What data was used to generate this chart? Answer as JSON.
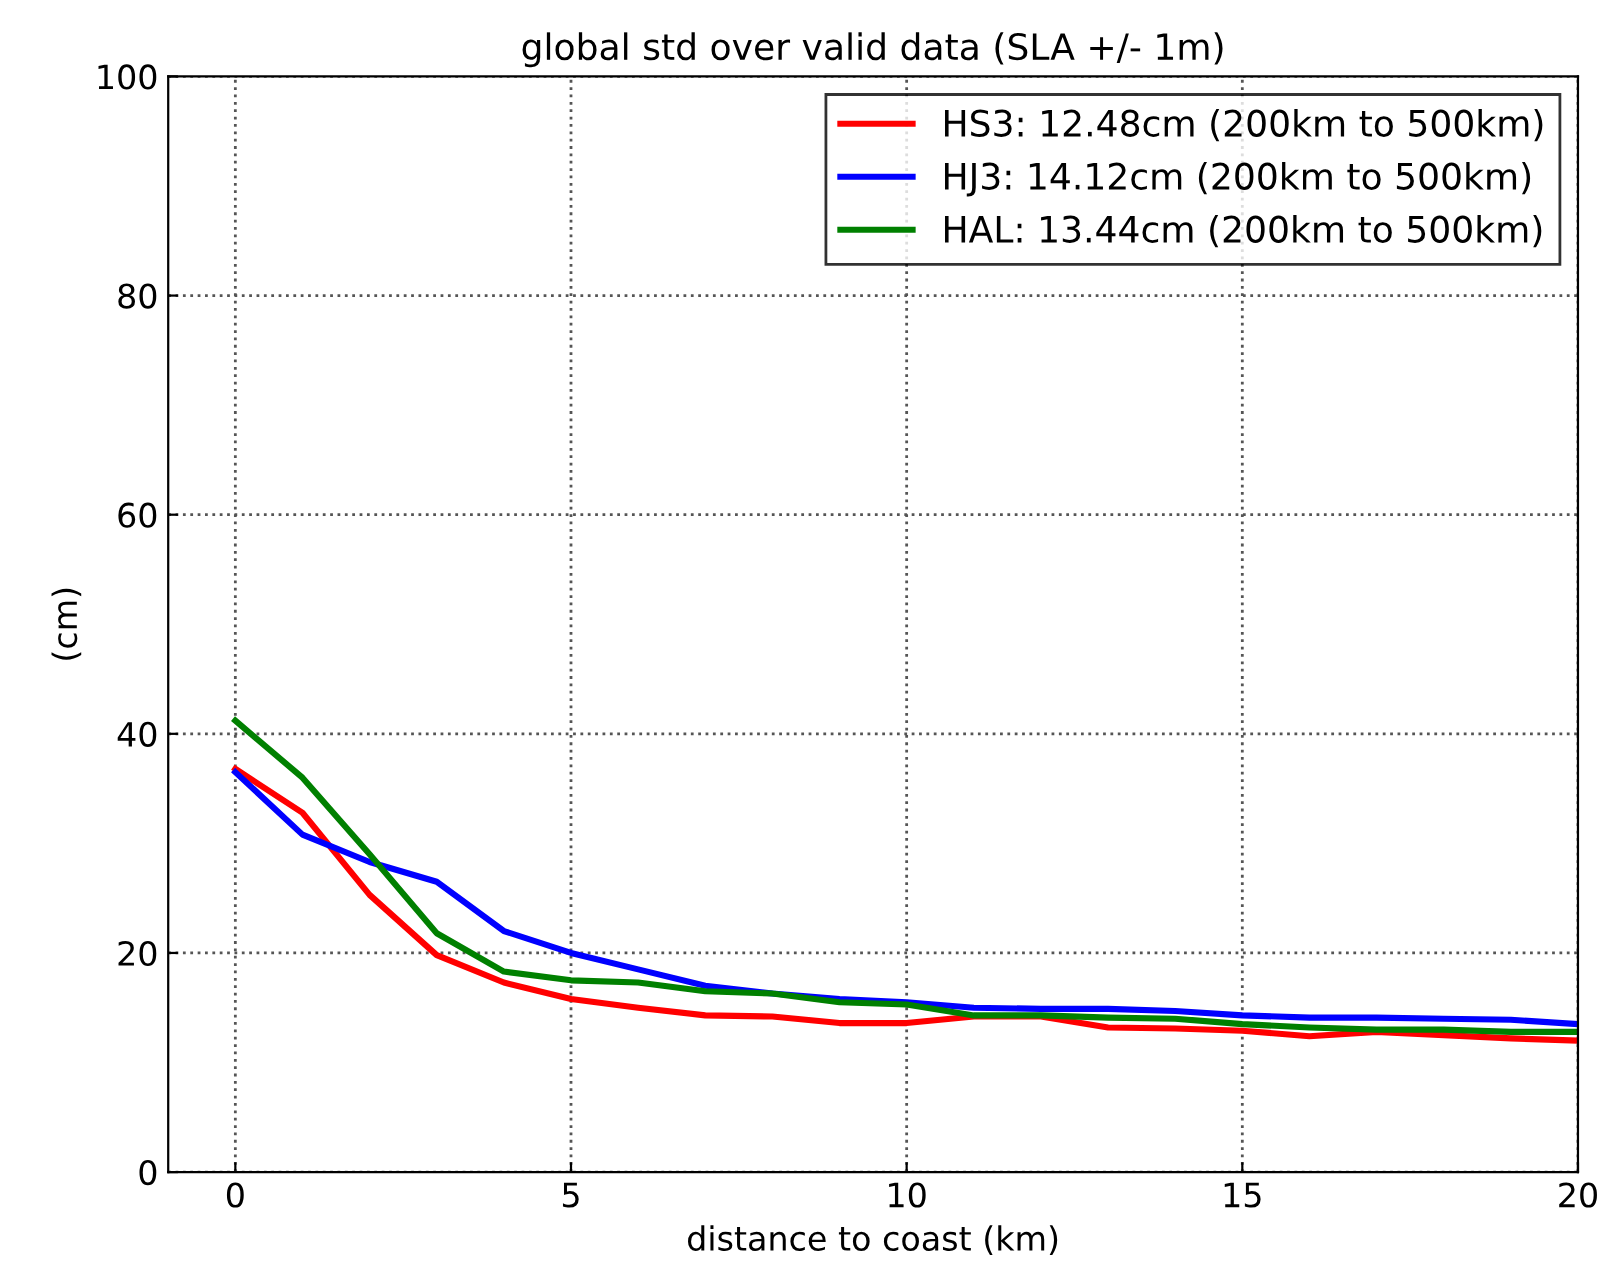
{
  "chart_data": {
    "type": "line",
    "title": "global std over valid data (SLA +/- 1m)",
    "xlabel": "distance to coast (km)",
    "ylabel": "(cm)",
    "x": [
      0,
      1,
      2,
      3,
      4,
      5,
      6,
      7,
      8,
      9,
      10,
      11,
      12,
      13,
      14,
      15,
      16,
      17,
      18,
      19,
      20
    ],
    "series": [
      {
        "name": "HS3: 12.48cm (200km to 500km)",
        "color": "#ff0000",
        "values": [
          36.8,
          32.8,
          25.3,
          19.8,
          17.3,
          15.8,
          15.0,
          14.3,
          14.2,
          13.6,
          13.6,
          14.2,
          14.2,
          13.2,
          13.1,
          12.9,
          12.4,
          12.8,
          12.5,
          12.2,
          12.0
        ]
      },
      {
        "name": "HJ3: 14.12cm (200km to 500km)",
        "color": "#0000ff",
        "values": [
          36.5,
          30.8,
          28.3,
          26.5,
          22.0,
          20.0,
          18.5,
          17.0,
          16.3,
          15.8,
          15.5,
          15.0,
          14.9,
          14.9,
          14.7,
          14.3,
          14.1,
          14.1,
          14.0,
          13.9,
          13.5
        ]
      },
      {
        "name": "HAL: 13.44cm (200km to 500km)",
        "color": "#008000",
        "values": [
          41.2,
          36.0,
          29.0,
          21.8,
          18.3,
          17.5,
          17.3,
          16.5,
          16.3,
          15.5,
          15.3,
          14.3,
          14.3,
          14.1,
          14.0,
          13.5,
          13.2,
          13.0,
          13.0,
          12.8,
          12.8
        ]
      }
    ],
    "xlim": [
      -1,
      20
    ],
    "xticks": [
      0,
      5,
      10,
      15,
      20
    ],
    "ylim": [
      0,
      100
    ],
    "yticks": [
      0,
      20,
      40,
      60,
      80,
      100
    ],
    "grid": true,
    "legend": "top right"
  }
}
